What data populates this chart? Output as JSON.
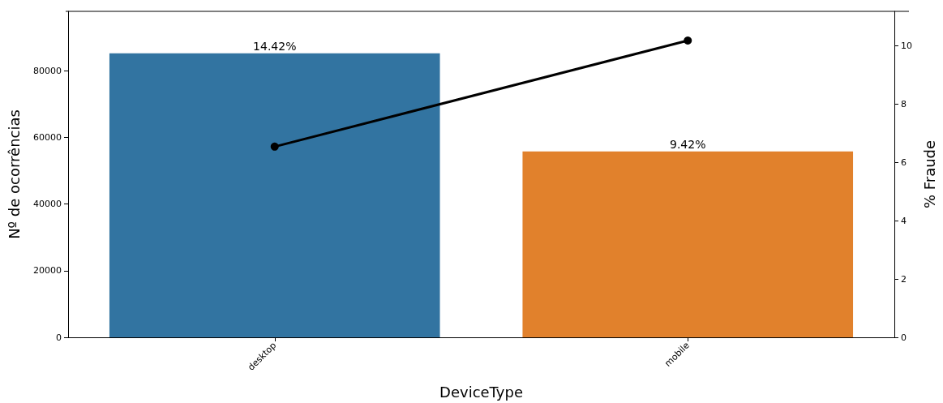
{
  "chart_data": {
    "type": "bar",
    "xlabel": "DeviceType",
    "ylabel": "Nº de ocorrências",
    "y2label": "% Fraude",
    "categories": [
      "desktop",
      "mobile"
    ],
    "series": [
      {
        "values": [
          85200,
          55800
        ],
        "colors": [
          "#3274a1",
          "#e1812c"
        ]
      },
      {
        "type": "line",
        "axis": "y2",
        "color": "#000000",
        "values": [
          6.54,
          10.18
        ],
        "marker": "circle",
        "line_style": "solid"
      }
    ],
    "ylim": [
      0,
      97800
    ],
    "yticks": [
      0,
      20000,
      40000,
      60000,
      80000
    ],
    "y2lim": [
      0,
      11.18
    ],
    "y2ticks": [
      0,
      2,
      4,
      6,
      8,
      10
    ],
    "annotations": [
      {
        "text": "14.42%",
        "x": "desktop",
        "y": 85200
      },
      {
        "text": "9.42%",
        "x": "mobile",
        "y": 55800
      }
    ],
    "grid": false
  }
}
